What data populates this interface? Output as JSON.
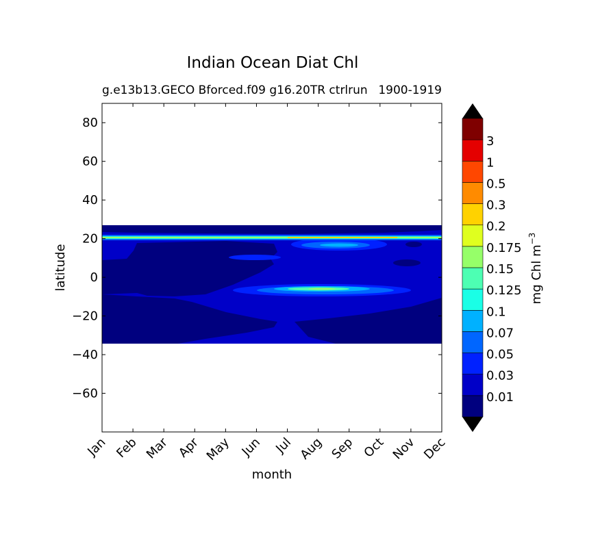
{
  "chart_data": {
    "type": "heatmap",
    "title": "Indian Ocean Diat Chl",
    "subtitle_left": "g.e13b13.GECO Bforced.f09 g16.20TR ctrlrun",
    "subtitle_right": "1900-1919",
    "xlabel": "month",
    "ylabel": "latitude",
    "x_categories": [
      "Jan",
      "Feb",
      "Mar",
      "Apr",
      "May",
      "Jun",
      "Jul",
      "Aug",
      "Sep",
      "Oct",
      "Nov",
      "Dec"
    ],
    "xlim": [
      0,
      11
    ],
    "ylim": [
      -80,
      90
    ],
    "y_ticks": [
      -60,
      -40,
      -20,
      0,
      20,
      40,
      60,
      80
    ],
    "y_tick_labels": [
      "−60",
      "−40",
      "−20",
      "0",
      "20",
      "40",
      "60",
      "80"
    ],
    "data_lat_range": [
      -34,
      27
    ],
    "colorbar": {
      "label_text": "mg Chl m",
      "label_exponent": "−3",
      "levels": [
        "0.01",
        "0.03",
        "0.05",
        "0.07",
        "0.1",
        "0.125",
        "0.15",
        "0.175",
        "0.2",
        "0.3",
        "0.5",
        "1",
        "3"
      ],
      "colors": [
        "#00007f",
        "#0000c8",
        "#0021ff",
        "#0066ff",
        "#00b1ff",
        "#1affe6",
        "#4dffb3",
        "#96ff69",
        "#dfff1f",
        "#ffd200",
        "#ff8b00",
        "#ff4700",
        "#e40000",
        "#7f0000"
      ],
      "extend_color": "#000000"
    },
    "regions": [
      {
        "desc": "background 0.01-0.03",
        "value_band": "0.01-0.03"
      },
      {
        "desc": "northern coastal band ~21N",
        "value_band": "0.1-0.3"
      },
      {
        "desc": "Arabian Sea bloom Aug-Oct ~16N",
        "value_band": "0.07-0.15"
      },
      {
        "desc": "equatorial bloom Jul-Oct ~-5N",
        "value_band": "0.07-0.2"
      },
      {
        "desc": "low chlorophyll interior",
        "value_band": "<0.01"
      }
    ]
  }
}
